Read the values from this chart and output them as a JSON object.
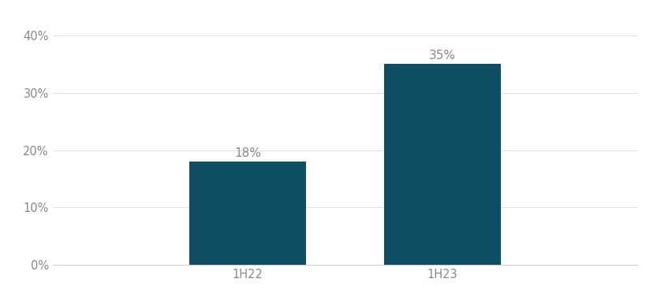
{
  "categories": [
    "1H22",
    "1H23"
  ],
  "values": [
    0.18,
    0.35
  ],
  "bar_color": "#0e4d63",
  "bar_width": 0.18,
  "ylim": [
    0,
    0.42
  ],
  "yticks": [
    0.0,
    0.1,
    0.2,
    0.3,
    0.4
  ],
  "tick_fontsize": 10.5,
  "background_color": "#ffffff",
  "grid_color": "#d9d9d9",
  "annotation_labels": [
    "18%",
    "35%"
  ],
  "annotation_fontsize": 11,
  "x_positions": [
    0.35,
    0.65
  ],
  "xlim": [
    0.05,
    0.95
  ]
}
